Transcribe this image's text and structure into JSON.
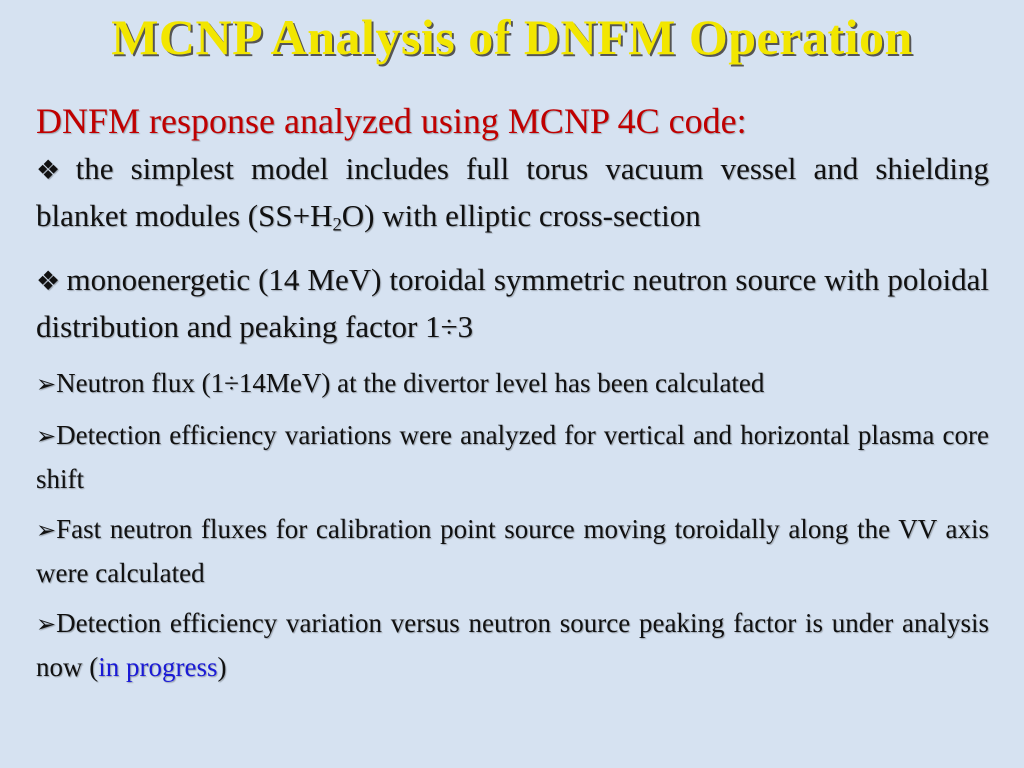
{
  "slide": {
    "title": "MCNP Analysis of DNFM Operation",
    "subtitle": "DNFM response analyzed using MCNP 4C code:",
    "diamond_bullets": [
      {
        "marker": "❖",
        "text_before": "the simplest model includes full torus vacuum vessel and shielding blanket modules (SS+H",
        "sub": "2",
        "text_after": "O) with elliptic cross-section"
      },
      {
        "marker": "❖",
        "text": "monoenergetic (14 MeV) toroidal symmetric neutron source with poloidal distribution and peaking factor 1÷3"
      }
    ],
    "arrow_bullets": [
      {
        "marker": "➢",
        "text": "Neutron flux (1÷14MeV) at the divertor level has been calculated"
      },
      {
        "marker": "➢",
        "text": "Detection efficiency variations were analyzed for vertical and horizontal plasma core shift"
      },
      {
        "marker": "➢",
        "text": "Fast neutron fluxes for calibration point source moving toroidally along the VV axis  were calculated"
      },
      {
        "marker": "➢",
        "text_before": "Detection efficiency variation versus neutron source peaking factor is under analysis now (",
        "highlight": "in progress",
        "text_after": ")"
      }
    ],
    "colors": {
      "background": "#d6e2f1",
      "title": "#f2e600",
      "subtitle": "#c00000",
      "highlight": "#1a1ad6"
    }
  }
}
